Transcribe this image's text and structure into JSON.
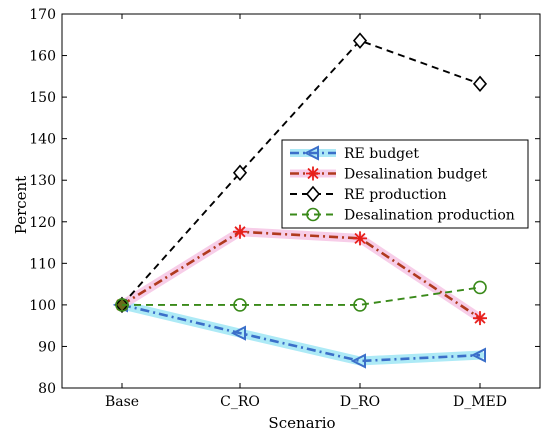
{
  "chart_data": {
    "type": "line",
    "categories": [
      "Base",
      "C_RO",
      "D_RO",
      "D_MED"
    ],
    "xlabel": "Scenario",
    "ylabel": "Percent",
    "ylim": [
      80,
      170
    ],
    "yticks": [
      80,
      90,
      100,
      110,
      120,
      130,
      140,
      150,
      160,
      170
    ],
    "grid": false,
    "legend_position": "center-right",
    "series": [
      {
        "name": "RE budget",
        "values": [
          100,
          93.2,
          86.5,
          87.9
        ],
        "color": "#3b6fc9",
        "dash": "dashdot",
        "marker": "triangle-left",
        "halo": "#9fe6f5"
      },
      {
        "name": "Desalination budget",
        "values": [
          100,
          117.6,
          116.0,
          96.8
        ],
        "color": "#b03a1e",
        "dash": "dashdot",
        "marker": "asterisk",
        "halo": "#f6c4e4",
        "marker_color": "#e8201a"
      },
      {
        "name": "RE production",
        "values": [
          100,
          131.8,
          163.6,
          153.2
        ],
        "color": "#000000",
        "dash": "dashed",
        "marker": "diamond"
      },
      {
        "name": "Desalination production",
        "values": [
          100,
          100,
          100,
          104.2
        ],
        "color": "#3a8a1a",
        "dash": "dashed",
        "marker": "circle"
      }
    ]
  }
}
